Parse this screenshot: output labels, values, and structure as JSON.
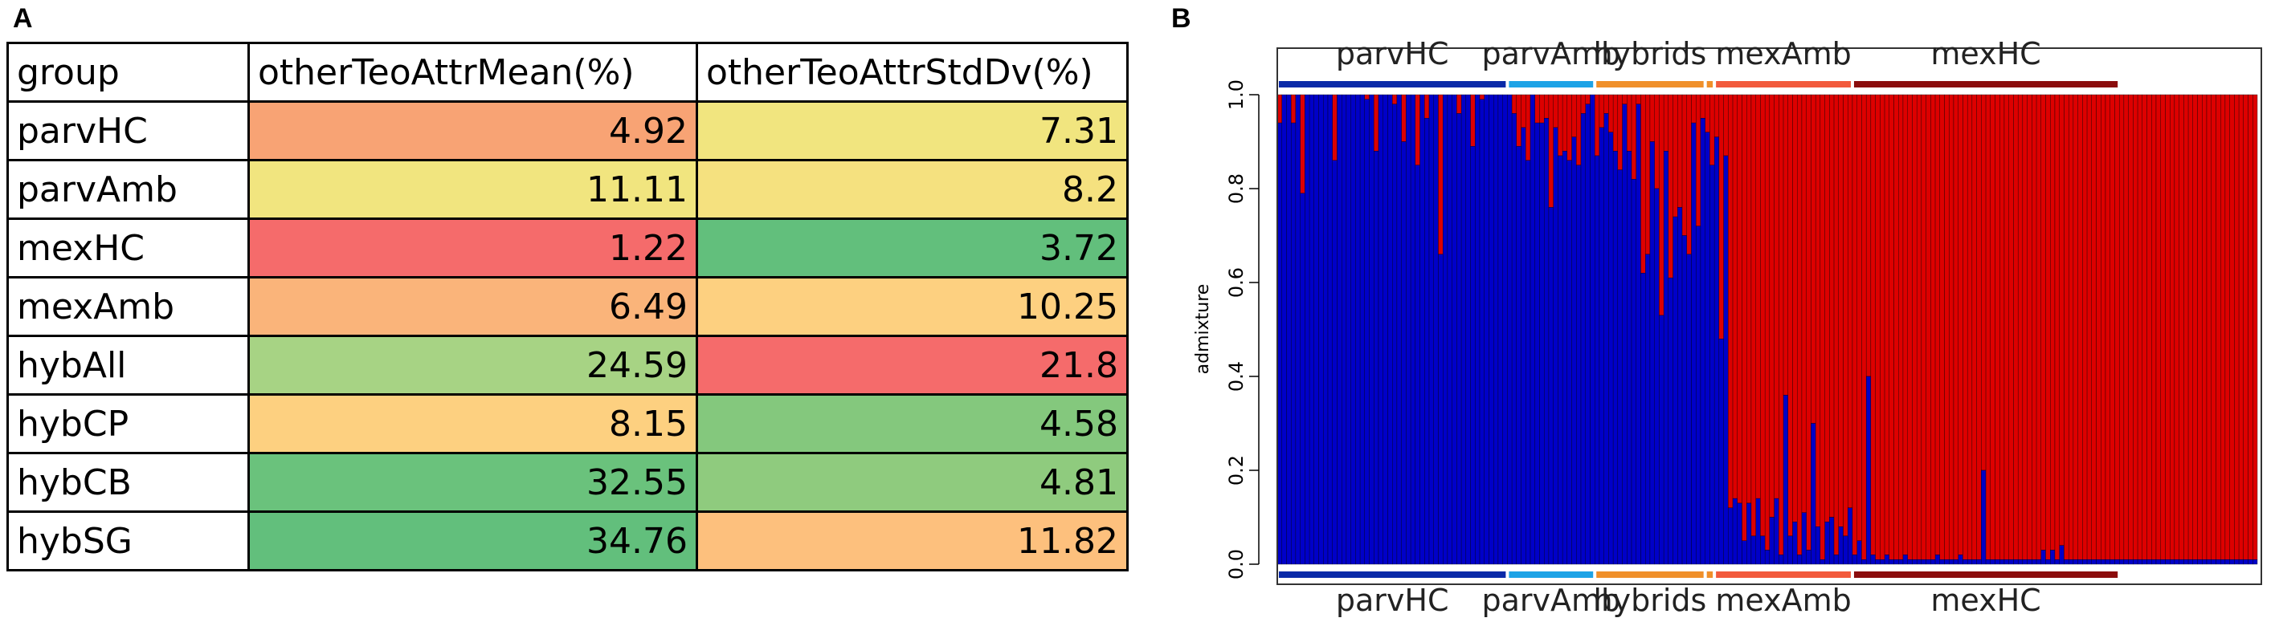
{
  "panels": {
    "a": "A",
    "b": "B"
  },
  "table": {
    "headers": [
      "group",
      "otherTeoAttrMean(%)",
      "otherTeoAttrStdDv(%)"
    ],
    "rows": [
      {
        "group": "parvHC",
        "mean": "4.92",
        "sd": "7.31",
        "mean_color": "#f8a374",
        "sd_color": "#f1e57f"
      },
      {
        "group": "parvAmb",
        "mean": "11.11",
        "sd": "8.2",
        "mean_color": "#f1e57f",
        "sd_color": "#f5e17f"
      },
      {
        "group": "mexHC",
        "mean": "1.22",
        "sd": "3.72",
        "mean_color": "#f56b6b",
        "sd_color": "#62bf7c"
      },
      {
        "group": "mexAmb",
        "mean": "6.49",
        "sd": "10.25",
        "mean_color": "#fab47a",
        "sd_color": "#fdd080"
      },
      {
        "group": "hybAll",
        "mean": "24.59",
        "sd": "21.8",
        "mean_color": "#a7d384",
        "sd_color": "#f56b6b"
      },
      {
        "group": "hybCP",
        "mean": "8.15",
        "sd": "4.58",
        "mean_color": "#fdd080",
        "sd_color": "#84c87d"
      },
      {
        "group": "hybCB",
        "mean": "32.55",
        "sd": "4.81",
        "mean_color": "#6ac27c",
        "sd_color": "#8fcb7e"
      },
      {
        "group": "hybSG",
        "mean": "34.76",
        "sd": "11.82",
        "mean_color": "#62bf7c",
        "sd_color": "#fdc07d"
      }
    ]
  },
  "chart_data": {
    "type": "bar",
    "stacked": true,
    "ylabel": "admixture",
    "ylim": [
      0,
      1
    ],
    "yticks": [
      "0.0",
      "0.2",
      "0.4",
      "0.6",
      "0.8",
      "1.0"
    ],
    "series_colors": {
      "blue": "#0000c8",
      "red": "#dd0000"
    },
    "groups": [
      {
        "name": "parvHC",
        "n": 50,
        "color": "#0a2aa8"
      },
      {
        "name": "parvAmb",
        "n": 19,
        "color": "#1ea3e6"
      },
      {
        "name": "hybrids",
        "n": 24,
        "color": "#f0902a"
      },
      {
        "name": "",
        "n": 2,
        "color": "#f0902a"
      },
      {
        "name": "mexAmb",
        "n": 30,
        "color": "#f25a3c"
      },
      {
        "name": "mexHC",
        "n": 58,
        "color": "#8b0d0d"
      }
    ],
    "blue_fraction": [
      0.94,
      1,
      1,
      0.94,
      1,
      0.79,
      1,
      1,
      1,
      1,
      1,
      1,
      0.86,
      1,
      1,
      1,
      1,
      1,
      1,
      0.99,
      1,
      0.88,
      1,
      1,
      1,
      0.98,
      1,
      0.9,
      1,
      1,
      0.85,
      1,
      0.95,
      1,
      1,
      0.66,
      1,
      1,
      1,
      0.96,
      1,
      1,
      0.89,
      1,
      0.99,
      1,
      1,
      1,
      1,
      1,
      1,
      0.96,
      0.89,
      0.93,
      0.86,
      1,
      0.94,
      0.94,
      0.95,
      0.76,
      0.93,
      0.87,
      0.88,
      0.86,
      0.91,
      0.85,
      0.96,
      0.98,
      1,
      0.87,
      0.93,
      0.96,
      0.92,
      0.88,
      0.84,
      0.98,
      0.88,
      0.82,
      0.98,
      0.62,
      0.66,
      0.9,
      0.8,
      0.53,
      0.88,
      0.61,
      0.74,
      0.76,
      0.7,
      0.66,
      0.94,
      0.72,
      0.95,
      0.92,
      0.85,
      0.91,
      0.48,
      0.87,
      0.12,
      0.14,
      0.13,
      0.05,
      0.13,
      0.06,
      0.14,
      0.06,
      0.03,
      0.1,
      0.14,
      0.02,
      0.36,
      0.06,
      0.09,
      0.02,
      0.11,
      0.03,
      0.3,
      0.08,
      0.01,
      0.09,
      0.1,
      0.02,
      0.08,
      0.06,
      0.12,
      0.02,
      0.05,
      0.01,
      0.4,
      0.02,
      0.01,
      0.01,
      0.02,
      0.01,
      0.01,
      0.01,
      0.02,
      0.01,
      0.01,
      0.01,
      0.01,
      0.01,
      0.01,
      0.02,
      0.01,
      0.01,
      0.01,
      0.01,
      0.02,
      0.01,
      0.01,
      0.01,
      0.01,
      0.2,
      0.01,
      0.01,
      0.01,
      0.01,
      0.01,
      0.01,
      0.01,
      0.01,
      0.01,
      0.01,
      0.01,
      0.01,
      0.03,
      0.01,
      0.03,
      0.01,
      0.04,
      0.01,
      0.01,
      0.01,
      0.01,
      0.01,
      0.01,
      0.01,
      0.01,
      0.01,
      0.01,
      0.01,
      0.01,
      0.01,
      0.01,
      0.01,
      0.01,
      0.01,
      0.01,
      0.01,
      0.01,
      0.01,
      0.01,
      0.01,
      0.01,
      0.01,
      0.01,
      0.01,
      0.01,
      0.01,
      0.01,
      0.01,
      0.01,
      0.01,
      0.01,
      0.01,
      0.01,
      0.01,
      0.01,
      0.01,
      0.01,
      0.01,
      0.01
    ]
  }
}
